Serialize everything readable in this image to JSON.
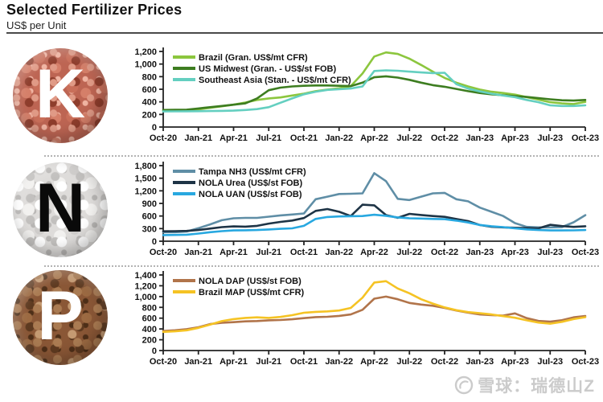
{
  "header": {
    "title": "Selected Fertilizer Prices",
    "subtitle": "US$ per Unit"
  },
  "panels": [
    {
      "letter": "K",
      "nutrient": "potash"
    },
    {
      "letter": "N",
      "nutrient": "nitrogen"
    },
    {
      "letter": "P",
      "nutrient": "phosphate"
    }
  ],
  "watermark": {
    "text": "雪球：瑞德山Z",
    "icon": "xueqiu-logo-icon",
    "color": "#cbcbcb"
  },
  "chart_data": [
    {
      "type": "line",
      "panel": "K",
      "title": "Potash prices",
      "ylim": [
        0,
        1200
      ],
      "yticks": [
        0,
        200,
        400,
        600,
        800,
        1000,
        1200
      ],
      "grid": false,
      "legend_position": "top-left",
      "x_tick_labels": [
        "Oct-20",
        "Jan-21",
        "Apr-21",
        "Jul-21",
        "Oct-21",
        "Jan-22",
        "Apr-22",
        "Jul-22",
        "Oct-22",
        "Jan-23",
        "Apr-23",
        "Jul-23",
        "Oct-23"
      ],
      "categories": [
        "Oct-20",
        "Nov-20",
        "Dec-20",
        "Jan-21",
        "Feb-21",
        "Mar-21",
        "Apr-21",
        "May-21",
        "Jun-21",
        "Jul-21",
        "Aug-21",
        "Sep-21",
        "Oct-21",
        "Nov-21",
        "Dec-21",
        "Jan-22",
        "Feb-22",
        "Mar-22",
        "Apr-22",
        "May-22",
        "Jun-22",
        "Jul-22",
        "Aug-22",
        "Sep-22",
        "Oct-22",
        "Nov-22",
        "Dec-22",
        "Jan-23",
        "Feb-23",
        "Mar-23",
        "Apr-23",
        "May-23",
        "Jun-23",
        "Jul-23",
        "Aug-23",
        "Sep-23",
        "Oct-23"
      ],
      "series": [
        {
          "name": "Brazil (Gran. US$/mt CFR)",
          "color": "#8cc63e",
          "values": [
            255,
            258,
            262,
            280,
            305,
            330,
            355,
            390,
            430,
            455,
            470,
            500,
            530,
            570,
            595,
            615,
            650,
            850,
            1120,
            1185,
            1160,
            1085,
            985,
            880,
            780,
            705,
            645,
            595,
            560,
            540,
            515,
            475,
            435,
            395,
            375,
            365,
            400
          ]
        },
        {
          "name": "US Midwest (Gran. - US$/st FOB)",
          "color": "#3d7d20",
          "values": [
            270,
            273,
            276,
            295,
            315,
            335,
            355,
            375,
            455,
            585,
            625,
            645,
            655,
            660,
            660,
            655,
            650,
            705,
            790,
            805,
            785,
            750,
            705,
            665,
            640,
            605,
            570,
            540,
            520,
            505,
            490,
            478,
            458,
            440,
            425,
            420,
            430
          ]
        },
        {
          "name": "Southeast Asia (Stan. - US$/mt CFR)",
          "color": "#64cfc0",
          "values": [
            248,
            249,
            250,
            252,
            254,
            257,
            261,
            270,
            285,
            315,
            385,
            455,
            520,
            560,
            590,
            600,
            612,
            645,
            890,
            900,
            893,
            880,
            867,
            856,
            862,
            680,
            610,
            565,
            530,
            500,
            475,
            430,
            395,
            345,
            335,
            335,
            345
          ]
        }
      ]
    },
    {
      "type": "line",
      "panel": "N",
      "title": "Nitrogen prices",
      "ylim": [
        0,
        1800
      ],
      "yticks": [
        0,
        300,
        600,
        900,
        1200,
        1500,
        1800
      ],
      "grid": false,
      "legend_position": "top-left",
      "x_tick_labels": [
        "Oct-20",
        "Jan-21",
        "Apr-21",
        "Jul-21",
        "Oct-21",
        "Jan-22",
        "Apr-22",
        "Jul-22",
        "Oct-22",
        "Jan-23",
        "Apr-23",
        "Jul-23",
        "Oct-23"
      ],
      "categories": [
        "Oct-20",
        "Nov-20",
        "Dec-20",
        "Jan-21",
        "Feb-21",
        "Mar-21",
        "Apr-21",
        "May-21",
        "Jun-21",
        "Jul-21",
        "Aug-21",
        "Sep-21",
        "Oct-21",
        "Nov-21",
        "Dec-21",
        "Jan-22",
        "Feb-22",
        "Mar-22",
        "Apr-22",
        "May-22",
        "Jun-22",
        "Jul-22",
        "Aug-22",
        "Sep-22",
        "Oct-22",
        "Nov-22",
        "Dec-22",
        "Jan-23",
        "Feb-23",
        "Mar-23",
        "Apr-23",
        "May-23",
        "Jun-23",
        "Jul-23",
        "Aug-23",
        "Sep-23",
        "Oct-23"
      ],
      "series": [
        {
          "name": "Tampa NH3 (US$/mt CFR)",
          "color": "#5f8ea6",
          "values": [
            210,
            215,
            230,
            310,
            400,
            500,
            545,
            555,
            555,
            585,
            615,
            635,
            660,
            1000,
            1060,
            1125,
            1130,
            1140,
            1620,
            1430,
            1010,
            980,
            1060,
            1140,
            1150,
            1000,
            950,
            800,
            700,
            600,
            430,
            340,
            330,
            330,
            335,
            450,
            620
          ]
        },
        {
          "name": "NOLA Urea (US$/st FOB)",
          "color": "#1e3446",
          "values": [
            235,
            240,
            246,
            266,
            300,
            335,
            352,
            346,
            365,
            420,
            460,
            492,
            552,
            722,
            765,
            700,
            600,
            870,
            855,
            622,
            558,
            652,
            625,
            600,
            580,
            528,
            478,
            385,
            342,
            330,
            320,
            312,
            306,
            390,
            360,
            340,
            356
          ]
        },
        {
          "name": "NOLA UAN (US$/st FOB)",
          "color": "#28a8e0",
          "values": [
            145,
            150,
            156,
            182,
            215,
            240,
            256,
            260,
            266,
            280,
            295,
            306,
            365,
            530,
            576,
            590,
            596,
            600,
            630,
            606,
            566,
            546,
            540,
            530,
            524,
            490,
            446,
            386,
            356,
            336,
            306,
            282,
            266,
            256,
            256,
            258,
            266
          ]
        }
      ]
    },
    {
      "type": "line",
      "panel": "P",
      "title": "Phosphate prices",
      "ylim": [
        0,
        1400
      ],
      "yticks": [
        0,
        200,
        400,
        600,
        800,
        1000,
        1200,
        1400
      ],
      "grid": false,
      "legend_position": "top-left",
      "x_tick_labels": [
        "Oct-20",
        "Jan-21",
        "Apr-21",
        "Jul-21",
        "Oct-21",
        "Jan-22",
        "Apr-22",
        "Jul-22",
        "Oct-22",
        "Jan-23",
        "Apr-23",
        "Jul-23",
        "Oct-23"
      ],
      "categories": [
        "Oct-20",
        "Nov-20",
        "Dec-20",
        "Jan-21",
        "Feb-21",
        "Mar-21",
        "Apr-21",
        "May-21",
        "Jun-21",
        "Jul-21",
        "Aug-21",
        "Sep-21",
        "Oct-21",
        "Nov-21",
        "Dec-21",
        "Jan-22",
        "Feb-22",
        "Mar-22",
        "Apr-22",
        "May-22",
        "Jun-22",
        "Jul-22",
        "Aug-22",
        "Sep-22",
        "Oct-22",
        "Nov-22",
        "Dec-22",
        "Jan-23",
        "Feb-23",
        "Mar-23",
        "Apr-23",
        "May-23",
        "Jun-23",
        "Jul-23",
        "Aug-23",
        "Sep-23",
        "Oct-23"
      ],
      "series": [
        {
          "name": "NOLA DAP (US$/st FOB)",
          "color": "#b1744a",
          "values": [
            362,
            376,
            396,
            432,
            490,
            516,
            526,
            540,
            546,
            560,
            566,
            580,
            600,
            620,
            626,
            642,
            668,
            755,
            960,
            1000,
            950,
            882,
            852,
            830,
            790,
            742,
            702,
            668,
            655,
            648,
            688,
            600,
            548,
            535,
            562,
            615,
            640
          ]
        },
        {
          "name": "Brazil MAP (US$/mt CFR)",
          "color": "#f5c324",
          "values": [
            345,
            356,
            376,
            420,
            480,
            545,
            582,
            605,
            615,
            605,
            622,
            656,
            700,
            716,
            726,
            742,
            790,
            980,
            1260,
            1285,
            1150,
            1060,
            950,
            870,
            800,
            748,
            712,
            692,
            668,
            638,
            608,
            560,
            518,
            498,
            532,
            582,
            618
          ]
        }
      ]
    }
  ]
}
